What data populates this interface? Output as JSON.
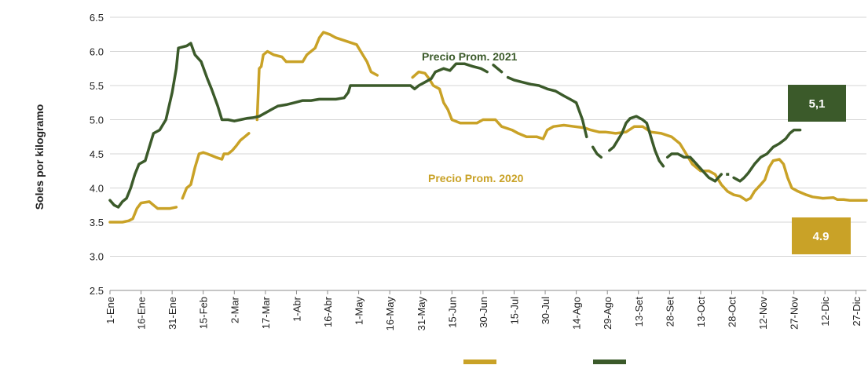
{
  "chart_data": {
    "type": "line",
    "ylabel": "Soles por kilogramo",
    "xlabel": "",
    "title": "",
    "ylim": [
      2.5,
      6.5
    ],
    "yticks": [
      2.5,
      3.0,
      3.5,
      4.0,
      4.5,
      5.0,
      5.5,
      6.0,
      6.5
    ],
    "ytick_labels": [
      "2.5",
      "3.0",
      "3.5",
      "4.0",
      "4.5",
      "5.0",
      "5.5",
      "6.0",
      "6.5"
    ],
    "x_range_days": [
      1,
      366
    ],
    "x_ticks": [
      {
        "label": "1-Ene",
        "day": 1
      },
      {
        "label": "16-Ene",
        "day": 16
      },
      {
        "label": "31-Ene",
        "day": 31
      },
      {
        "label": "15-Feb",
        "day": 46
      },
      {
        "label": "2-Mar",
        "day": 61
      },
      {
        "label": "17-Mar",
        "day": 76
      },
      {
        "label": "1-Abr",
        "day": 91
      },
      {
        "label": "16-Abr",
        "day": 106
      },
      {
        "label": "1-May",
        "day": 121
      },
      {
        "label": "16-May",
        "day": 136
      },
      {
        "label": "31-May",
        "day": 151
      },
      {
        "label": "15-Jun",
        "day": 166
      },
      {
        "label": "30-Jun",
        "day": 181
      },
      {
        "label": "15-Jul",
        "day": 196
      },
      {
        "label": "30-Jul",
        "day": 211
      },
      {
        "label": "14-Ago",
        "day": 226
      },
      {
        "label": "29-Ago",
        "day": 241
      },
      {
        "label": "13-Set",
        "day": 256
      },
      {
        "label": "28-Set",
        "day": 271
      },
      {
        "label": "13-Oct",
        "day": 286
      },
      {
        "label": "28-Oct",
        "day": 301
      },
      {
        "label": "12-Nov",
        "day": 316
      },
      {
        "label": "27-Nov",
        "day": 331
      },
      {
        "label": "12-Dic",
        "day": 346
      },
      {
        "label": "27-Dic",
        "day": 361
      }
    ],
    "grid": true,
    "series": [
      {
        "name": "Precio Prom. 2020",
        "color": "#c9a227",
        "end_label": "4.9",
        "segments": [
          [
            [
              1,
              3.5
            ],
            [
              7,
              3.5
            ],
            [
              10,
              3.52
            ],
            [
              12,
              3.55
            ],
            [
              14,
              3.7
            ],
            [
              16,
              3.78
            ],
            [
              20,
              3.8
            ],
            [
              22,
              3.75
            ],
            [
              24,
              3.7
            ],
            [
              30,
              3.7
            ],
            [
              33,
              3.72
            ]
          ],
          [
            [
              36,
              3.85
            ],
            [
              38,
              4.0
            ],
            [
              40,
              4.05
            ],
            [
              42,
              4.3
            ],
            [
              44,
              4.5
            ],
            [
              46,
              4.52
            ],
            [
              48,
              4.5
            ],
            [
              52,
              4.45
            ],
            [
              55,
              4.42
            ],
            [
              56,
              4.5
            ],
            [
              58,
              4.5
            ],
            [
              60,
              4.55
            ],
            [
              62,
              4.62
            ],
            [
              64,
              4.7
            ],
            [
              66,
              4.75
            ],
            [
              68,
              4.8
            ]
          ],
          [
            [
              72,
              5.0
            ],
            [
              73,
              5.75
            ],
            [
              74,
              5.78
            ],
            [
              75,
              5.95
            ],
            [
              77,
              6.0
            ],
            [
              80,
              5.95
            ],
            [
              84,
              5.92
            ],
            [
              86,
              5.85
            ],
            [
              94,
              5.85
            ],
            [
              96,
              5.95
            ],
            [
              98,
              6.0
            ],
            [
              100,
              6.05
            ],
            [
              102,
              6.2
            ],
            [
              104,
              6.28
            ],
            [
              107,
              6.25
            ],
            [
              110,
              6.2
            ],
            [
              115,
              6.15
            ],
            [
              120,
              6.1
            ],
            [
              122,
              6.0
            ],
            [
              125,
              5.85
            ],
            [
              127,
              5.7
            ],
            [
              130,
              5.65
            ]
          ],
          [
            [
              147,
              5.62
            ],
            [
              150,
              5.7
            ],
            [
              153,
              5.68
            ],
            [
              155,
              5.6
            ],
            [
              157,
              5.5
            ],
            [
              160,
              5.45
            ],
            [
              162,
              5.25
            ],
            [
              164,
              5.15
            ],
            [
              166,
              5.0
            ],
            [
              170,
              4.95
            ],
            [
              178,
              4.95
            ],
            [
              181,
              5.0
            ],
            [
              187,
              5.0
            ],
            [
              190,
              4.9
            ],
            [
              195,
              4.85
            ],
            [
              198,
              4.8
            ],
            [
              202,
              4.75
            ],
            [
              207,
              4.75
            ],
            [
              210,
              4.72
            ],
            [
              212,
              4.85
            ],
            [
              215,
              4.9
            ],
            [
              220,
              4.92
            ],
            [
              225,
              4.9
            ],
            [
              230,
              4.88
            ],
            [
              233,
              4.85
            ],
            [
              237,
              4.82
            ],
            [
              240,
              4.82
            ],
            [
              245,
              4.8
            ],
            [
              250,
              4.82
            ],
            [
              254,
              4.9
            ],
            [
              258,
              4.9
            ],
            [
              262,
              4.82
            ],
            [
              267,
              4.8
            ],
            [
              272,
              4.75
            ],
            [
              276,
              4.65
            ],
            [
              279,
              4.5
            ],
            [
              282,
              4.35
            ],
            [
              286,
              4.25
            ],
            [
              290,
              4.25
            ],
            [
              293,
              4.2
            ],
            [
              296,
              4.05
            ],
            [
              299,
              3.95
            ],
            [
              302,
              3.9
            ],
            [
              305,
              3.88
            ],
            [
              308,
              3.82
            ],
            [
              310,
              3.85
            ],
            [
              312,
              3.95
            ],
            [
              315,
              4.05
            ],
            [
              317,
              4.12
            ],
            [
              319,
              4.3
            ],
            [
              321,
              4.4
            ],
            [
              324,
              4.42
            ],
            [
              326,
              4.35
            ],
            [
              328,
              4.15
            ],
            [
              330,
              4.0
            ],
            [
              333,
              3.95
            ],
            [
              337,
              3.9
            ],
            [
              340,
              3.87
            ],
            [
              345,
              3.85
            ],
            [
              350,
              3.86
            ],
            [
              352,
              3.83
            ],
            [
              355,
              3.83
            ],
            [
              358,
              3.82
            ],
            [
              366,
              3.82
            ]
          ]
        ]
      },
      {
        "name": "Precio Prom. 2021",
        "color": "#3b5a2a",
        "end_label": "5,1",
        "segments": [
          [
            [
              1,
              3.82
            ],
            [
              3,
              3.75
            ],
            [
              5,
              3.72
            ],
            [
              7,
              3.8
            ],
            [
              9,
              3.85
            ],
            [
              11,
              4.0
            ],
            [
              13,
              4.2
            ],
            [
              15,
              4.35
            ],
            [
              18,
              4.4
            ],
            [
              20,
              4.6
            ],
            [
              22,
              4.8
            ],
            [
              25,
              4.85
            ],
            [
              28,
              5.0
            ],
            [
              31,
              5.4
            ],
            [
              33,
              5.75
            ],
            [
              34,
              6.05
            ],
            [
              38,
              6.08
            ],
            [
              40,
              6.12
            ],
            [
              42,
              5.95
            ],
            [
              45,
              5.85
            ],
            [
              48,
              5.6
            ],
            [
              50,
              5.45
            ],
            [
              53,
              5.2
            ],
            [
              55,
              5.0
            ],
            [
              58,
              5.0
            ],
            [
              61,
              4.98
            ],
            [
              64,
              5.0
            ],
            [
              67,
              5.02
            ],
            [
              70,
              5.03
            ],
            [
              73,
              5.05
            ],
            [
              76,
              5.1
            ],
            [
              79,
              5.15
            ],
            [
              82,
              5.2
            ],
            [
              86,
              5.22
            ],
            [
              90,
              5.25
            ],
            [
              94,
              5.28
            ],
            [
              98,
              5.28
            ],
            [
              102,
              5.3
            ],
            [
              106,
              5.3
            ],
            [
              110,
              5.3
            ],
            [
              114,
              5.32
            ],
            [
              116,
              5.4
            ],
            [
              117,
              5.5
            ],
            [
              124,
              5.5
            ],
            [
              130,
              5.5
            ],
            [
              136,
              5.5
            ],
            [
              142,
              5.5
            ],
            [
              146,
              5.5
            ],
            [
              148,
              5.45
            ],
            [
              150,
              5.5
            ],
            [
              153,
              5.55
            ],
            [
              156,
              5.6
            ],
            [
              158,
              5.7
            ],
            [
              162,
              5.75
            ],
            [
              165,
              5.72
            ],
            [
              168,
              5.82
            ],
            [
              172,
              5.82
            ],
            [
              176,
              5.78
            ],
            [
              180,
              5.75
            ],
            [
              183,
              5.7
            ]
          ],
          [
            [
              186,
              5.8
            ],
            [
              188,
              5.75
            ],
            [
              190,
              5.7
            ]
          ],
          [
            [
              193,
              5.62
            ],
            [
              196,
              5.58
            ],
            [
              200,
              5.55
            ],
            [
              204,
              5.52
            ],
            [
              208,
              5.5
            ],
            [
              212,
              5.45
            ],
            [
              216,
              5.42
            ],
            [
              220,
              5.35
            ],
            [
              223,
              5.3
            ],
            [
              226,
              5.25
            ],
            [
              229,
              5.0
            ],
            [
              231,
              4.75
            ]
          ],
          [
            [
              234,
              4.6
            ],
            [
              236,
              4.5
            ],
            [
              238,
              4.45
            ]
          ],
          [
            [
              242,
              4.55
            ],
            [
              244,
              4.6
            ],
            [
              246,
              4.7
            ],
            [
              248,
              4.8
            ],
            [
              250,
              4.95
            ],
            [
              252,
              5.02
            ],
            [
              255,
              5.05
            ],
            [
              258,
              5.0
            ],
            [
              260,
              4.95
            ],
            [
              262,
              4.75
            ],
            [
              264,
              4.55
            ],
            [
              266,
              4.4
            ],
            [
              268,
              4.32
            ]
          ],
          [
            [
              270,
              4.45
            ],
            [
              272,
              4.5
            ],
            [
              275,
              4.5
            ],
            [
              278,
              4.45
            ],
            [
              281,
              4.45
            ],
            [
              284,
              4.35
            ],
            [
              287,
              4.25
            ],
            [
              290,
              4.15
            ],
            [
              293,
              4.1
            ],
            [
              296,
              4.2
            ]
          ],
          [
            [
              299,
              4.2
            ]
          ],
          [
            [
              302,
              4.15
            ],
            [
              305,
              4.1
            ],
            [
              307,
              4.15
            ],
            [
              309,
              4.22
            ],
            [
              312,
              4.35
            ],
            [
              315,
              4.45
            ],
            [
              318,
              4.5
            ],
            [
              321,
              4.6
            ],
            [
              324,
              4.65
            ],
            [
              327,
              4.72
            ],
            [
              329,
              4.8
            ],
            [
              331,
              4.85
            ],
            [
              334,
              4.85
            ]
          ]
        ]
      }
    ],
    "annotations": [
      {
        "text": "Precio Prom. 2021",
        "series": "Precio Prom. 2021"
      },
      {
        "text": "Precio Prom. 2020",
        "series": "Precio Prom. 2020"
      }
    ]
  }
}
